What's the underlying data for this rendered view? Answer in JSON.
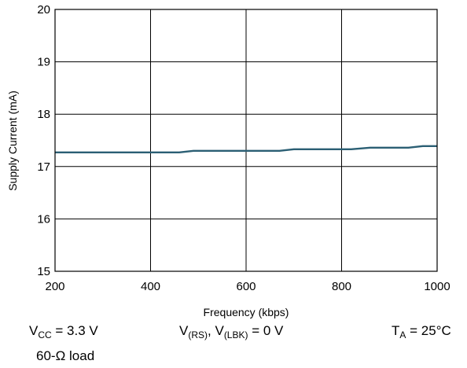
{
  "chart_data": {
    "type": "line",
    "title": "",
    "xlabel": "Frequency (kbps)",
    "ylabel": "Supply Current (mA)",
    "xlim": [
      200,
      1000
    ],
    "ylim": [
      15,
      20
    ],
    "x_ticks": [
      200,
      400,
      600,
      800,
      1000
    ],
    "y_ticks": [
      15,
      16,
      17,
      18,
      19,
      20
    ],
    "grid": true,
    "legend": "none",
    "series": [
      {
        "color": "#2b5f74",
        "x": [
          200,
          300,
          400,
          460,
          490,
          560,
          600,
          670,
          700,
          760,
          820,
          860,
          900,
          940,
          970,
          1000
        ],
        "y": [
          17.27,
          17.27,
          17.27,
          17.27,
          17.3,
          17.3,
          17.3,
          17.3,
          17.33,
          17.33,
          17.33,
          17.36,
          17.36,
          17.36,
          17.39,
          17.39
        ]
      }
    ]
  },
  "conditions": {
    "vcc": {
      "main": "V",
      "sub": "CC",
      "rest": " = 3.3 V"
    },
    "load": "60-Ω load",
    "vrs": {
      "v1": "V",
      "sub1": "(RS)",
      "mid": ", V",
      "sub2": "(LBK)",
      "rest": " = 0 V"
    },
    "ta": {
      "main": "T",
      "sub": "A",
      "rest": " = 25°C"
    }
  }
}
